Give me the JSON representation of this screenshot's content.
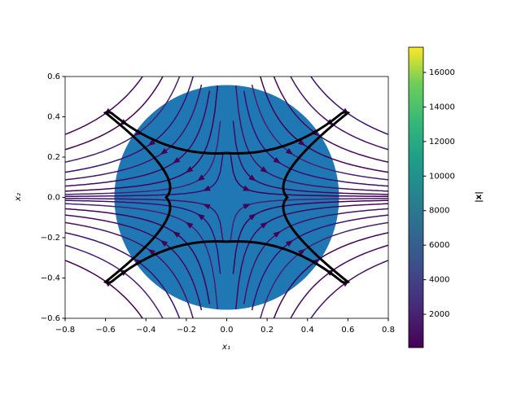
{
  "chart_data": {
    "type": "streamplot",
    "xlabel": "x₁",
    "ylabel": "x₂",
    "colorbar_label": "|x|",
    "xlim": [
      -0.8,
      0.8
    ],
    "ylim": [
      -0.6,
      0.6
    ],
    "xticks": [
      {
        "value": -0.8,
        "label": "−0.8"
      },
      {
        "value": -0.6,
        "label": "−0.6"
      },
      {
        "value": -0.4,
        "label": "−0.4"
      },
      {
        "value": -0.2,
        "label": "−0.2"
      },
      {
        "value": 0,
        "label": "0.0"
      },
      {
        "value": 0.2,
        "label": "0.2"
      },
      {
        "value": 0.4,
        "label": "0.4"
      },
      {
        "value": 0.6,
        "label": "0.6"
      },
      {
        "value": 0.8,
        "label": "0.8"
      }
    ],
    "yticks": [
      {
        "value": -0.6,
        "label": "−0.6"
      },
      {
        "value": -0.4,
        "label": "−0.4"
      },
      {
        "value": -0.2,
        "label": "−0.2"
      },
      {
        "value": 0,
        "label": "0.0"
      },
      {
        "value": 0.2,
        "label": "0.2"
      },
      {
        "value": 0.4,
        "label": "0.4"
      },
      {
        "value": 0.6,
        "label": "0.6"
      }
    ],
    "clim": [
      70,
      17460
    ],
    "cticks": [
      2000,
      4000,
      6000,
      8000,
      10000,
      12000,
      14000,
      16000
    ]
  }
}
